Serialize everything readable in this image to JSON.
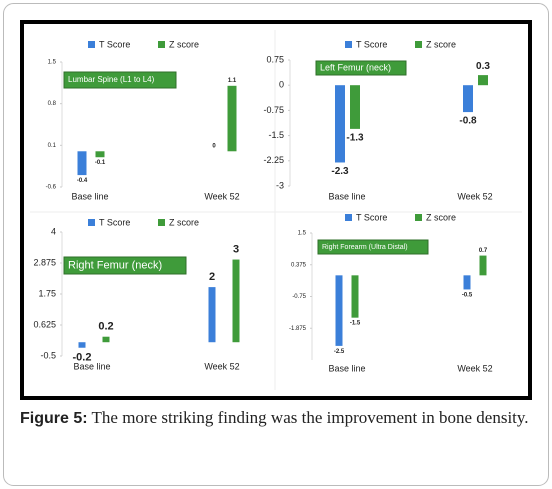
{
  "chart_data": [
    {
      "type": "bar",
      "title": "Lumbar Spine (L1 to L4)",
      "categories": [
        "Base line",
        "Week 52"
      ],
      "series": [
        {
          "name": "T Score",
          "color": "#3b7fd9",
          "values": [
            -0.4,
            0
          ]
        },
        {
          "name": "Z score",
          "color": "#3f9b3a",
          "values": [
            -0.1,
            1.1
          ]
        }
      ],
      "ylim": [
        -0.6,
        1.5
      ],
      "yticks": [
        -0.6,
        0.1,
        0.8,
        1.5
      ]
    },
    {
      "type": "bar",
      "title": "Left Femur (neck)",
      "categories": [
        "Base line",
        "Week 52"
      ],
      "series": [
        {
          "name": "T Score",
          "color": "#3b7fd9",
          "values": [
            -2.3,
            -0.8
          ]
        },
        {
          "name": "Z score",
          "color": "#3f9b3a",
          "values": [
            -1.3,
            0.3
          ]
        }
      ],
      "ylim": [
        -3,
        0.75
      ],
      "yticks": [
        -3,
        -2.25,
        -1.5,
        -0.75,
        0,
        0.75
      ]
    },
    {
      "type": "bar",
      "title": "Right Femur (neck)",
      "categories": [
        "Base line",
        "Week 52"
      ],
      "series": [
        {
          "name": "T Score",
          "color": "#3b7fd9",
          "values": [
            -0.2,
            2
          ]
        },
        {
          "name": "Z score",
          "color": "#3f9b3a",
          "values": [
            0.2,
            3
          ]
        }
      ],
      "ylim": [
        -0.5,
        4
      ],
      "yticks": [
        -0.5,
        0.625,
        1.75,
        2.875,
        4
      ]
    },
    {
      "type": "bar",
      "title": "Right Forearm (Ultra Distal)",
      "categories": [
        "Base line",
        "Week 52"
      ],
      "series": [
        {
          "name": "T Score",
          "color": "#3b7fd9",
          "values": [
            -2.5,
            -0.5
          ]
        },
        {
          "name": "Z score",
          "color": "#3f9b3a",
          "values": [
            -1.5,
            0.7
          ]
        }
      ],
      "ylim": [
        -3,
        1.5
      ],
      "yticks": [
        -1.875,
        -0.75,
        0.375,
        1.5
      ]
    }
  ],
  "caption": {
    "label": "Figure 5:",
    "text": "The more striking finding was the improvement in bone density."
  }
}
